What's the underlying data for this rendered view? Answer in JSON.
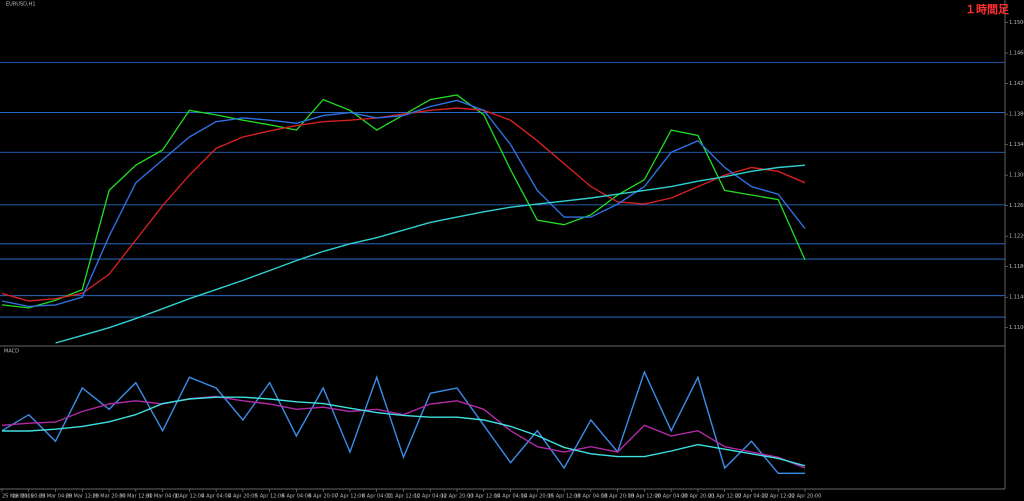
{
  "chart_data": [
    {
      "type": "line",
      "title": "EURUSD,H1",
      "annotation": "１時間足",
      "categories": [
        "25 Mar 2016",
        "28 Mar 20:00",
        "29 Mar 04:00",
        "29 Mar 12:00",
        "29 Mar 20:00",
        "30 Mar 12:00",
        "31 Mar 04:00",
        "1 Apr 12:00",
        "4 Apr 04:00",
        "4 Apr 20:00",
        "5 Apr 12:00",
        "6 Apr 04:00",
        "6 Apr 20:00",
        "7 Apr 12:00",
        "8 Apr 04:00",
        "11 Apr 12:00",
        "12 Apr 04:00",
        "12 Apr 20:00",
        "13 Apr 12:00",
        "14 Apr 04:00",
        "14 Apr 20:00",
        "15 Apr 12:00",
        "18 Apr 04:00",
        "18 Apr 20:00",
        "19 Apr 12:00",
        "20 Apr 04:00",
        "20 Apr 20:00",
        "21 Apr 12:00",
        "22 Apr 04:00",
        "22 Apr 12:00",
        "22 Apr 20:00"
      ],
      "series": [
        {
          "color": "#22dd22",
          "values": [
            1.113,
            1.1126,
            1.1136,
            1.115,
            1.128,
            1.1313,
            1.1333,
            1.1385,
            1.1379,
            1.1372,
            1.1366,
            1.1359,
            1.1399,
            1.1385,
            1.1359,
            1.1379,
            1.1399,
            1.1405,
            1.1379,
            1.1307,
            1.1241,
            1.1235,
            1.1248,
            1.1274,
            1.1294,
            1.1359,
            1.1352,
            1.128,
            1.1274,
            1.1268,
            1.1189
          ]
        },
        {
          "color": "#d42020",
          "values": [
            1.1145,
            1.1135,
            1.1138,
            1.1145,
            1.117,
            1.1215,
            1.126,
            1.13,
            1.1335,
            1.135,
            1.1358,
            1.1365,
            1.137,
            1.1372,
            1.1375,
            1.138,
            1.1385,
            1.1388,
            1.1385,
            1.1372,
            1.1345,
            1.1315,
            1.1285,
            1.1265,
            1.1262,
            1.127,
            1.1285,
            1.13,
            1.131,
            1.1305,
            1.129
          ]
        },
        {
          "color": "#2f6fe0",
          "values": [
            1.1135,
            1.1128,
            1.113,
            1.114,
            1.122,
            1.129,
            1.132,
            1.135,
            1.137,
            1.1375,
            1.1372,
            1.1368,
            1.1378,
            1.1382,
            1.1375,
            1.1378,
            1.139,
            1.1398,
            1.1385,
            1.134,
            1.128,
            1.1245,
            1.1245,
            1.1262,
            1.1285,
            1.133,
            1.1345,
            1.131,
            1.1285,
            1.1275,
            1.123
          ]
        },
        {
          "color": "#30d0d0",
          "values": [
            null,
            null,
            1.108,
            1.109,
            1.11,
            1.1112,
            1.1125,
            1.1138,
            1.115,
            1.1162,
            1.1175,
            1.1188,
            1.12,
            1.121,
            1.1218,
            1.1228,
            1.1238,
            1.1245,
            1.1252,
            1.1258,
            1.1262,
            1.1266,
            1.127,
            1.1275,
            1.128,
            1.1285,
            1.1292,
            1.1298,
            1.1305,
            1.131,
            1.1313
          ]
        }
      ],
      "levels": [
        1.1448,
        1.1382,
        1.133,
        1.1261,
        1.121,
        1.119,
        1.1142,
        1.1114
      ],
      "levels_color": "#2a7ae0",
      "ylim": [
        1.108,
        1.1523
      ],
      "yticks": [
        {
          "value": 1.11,
          "label": "1.11000"
        },
        {
          "value": 1.114,
          "label": "1.11400"
        },
        {
          "value": 1.118,
          "label": "1.11800"
        },
        {
          "value": 1.122,
          "label": "1.12200"
        },
        {
          "value": 1.126,
          "label": "1.12600"
        },
        {
          "value": 1.13,
          "label": "1.13000"
        },
        {
          "value": 1.134,
          "label": "1.13400"
        },
        {
          "value": 1.138,
          "label": "1.13800"
        },
        {
          "value": 1.142,
          "label": "1.14200"
        },
        {
          "value": 1.146,
          "label": "1.14600"
        },
        {
          "value": 1.15,
          "label": "1.15000"
        }
      ]
    },
    {
      "type": "line",
      "title": "MACD",
      "series": [
        {
          "color": "#3a8de8",
          "values": [
            -0.001,
            0.0005,
            -0.002,
            0.003,
            0.001,
            0.0035,
            -0.001,
            0.004,
            0.003,
            0.0,
            0.0035,
            -0.0015,
            0.003,
            -0.003,
            0.004,
            -0.0035,
            0.0025,
            0.003,
            -0.0005,
            -0.004,
            -0.001,
            -0.0045,
            0.0,
            -0.003,
            0.0045,
            -0.001,
            0.004,
            -0.0045,
            -0.002,
            -0.005,
            -0.005
          ]
        },
        {
          "color": "#b02aa8",
          "values": [
            -0.0005,
            -0.0003,
            -0.0002,
            0.0008,
            0.0015,
            0.0018,
            0.0015,
            0.002,
            0.0022,
            0.0018,
            0.0015,
            0.001,
            0.0012,
            0.0008,
            0.001,
            0.0005,
            0.0015,
            0.0018,
            0.001,
            -0.001,
            -0.0025,
            -0.003,
            -0.0025,
            -0.003,
            -0.0005,
            -0.0015,
            -0.001,
            -0.0025,
            -0.003,
            -0.0035,
            -0.0045
          ]
        },
        {
          "color": "#40e0e0",
          "values": [
            -0.00103,
            -0.00103,
            -0.00086,
            -0.0006,
            -0.00017,
            0.00051,
            0.00154,
            0.00197,
            0.00214,
            0.00214,
            0.00197,
            0.00171,
            0.00154,
            0.00111,
            0.00069,
            0.00043,
            0.00026,
            0.00026,
            0,
            -0.0006,
            -0.00146,
            -0.00257,
            -0.00317,
            -0.00343,
            -0.00343,
            -0.00291,
            -0.00231,
            -0.00274,
            -0.00317,
            -0.0036,
            -0.00429
          ]
        }
      ],
      "ylim": [
        -0.006,
        0.006
      ]
    }
  ]
}
